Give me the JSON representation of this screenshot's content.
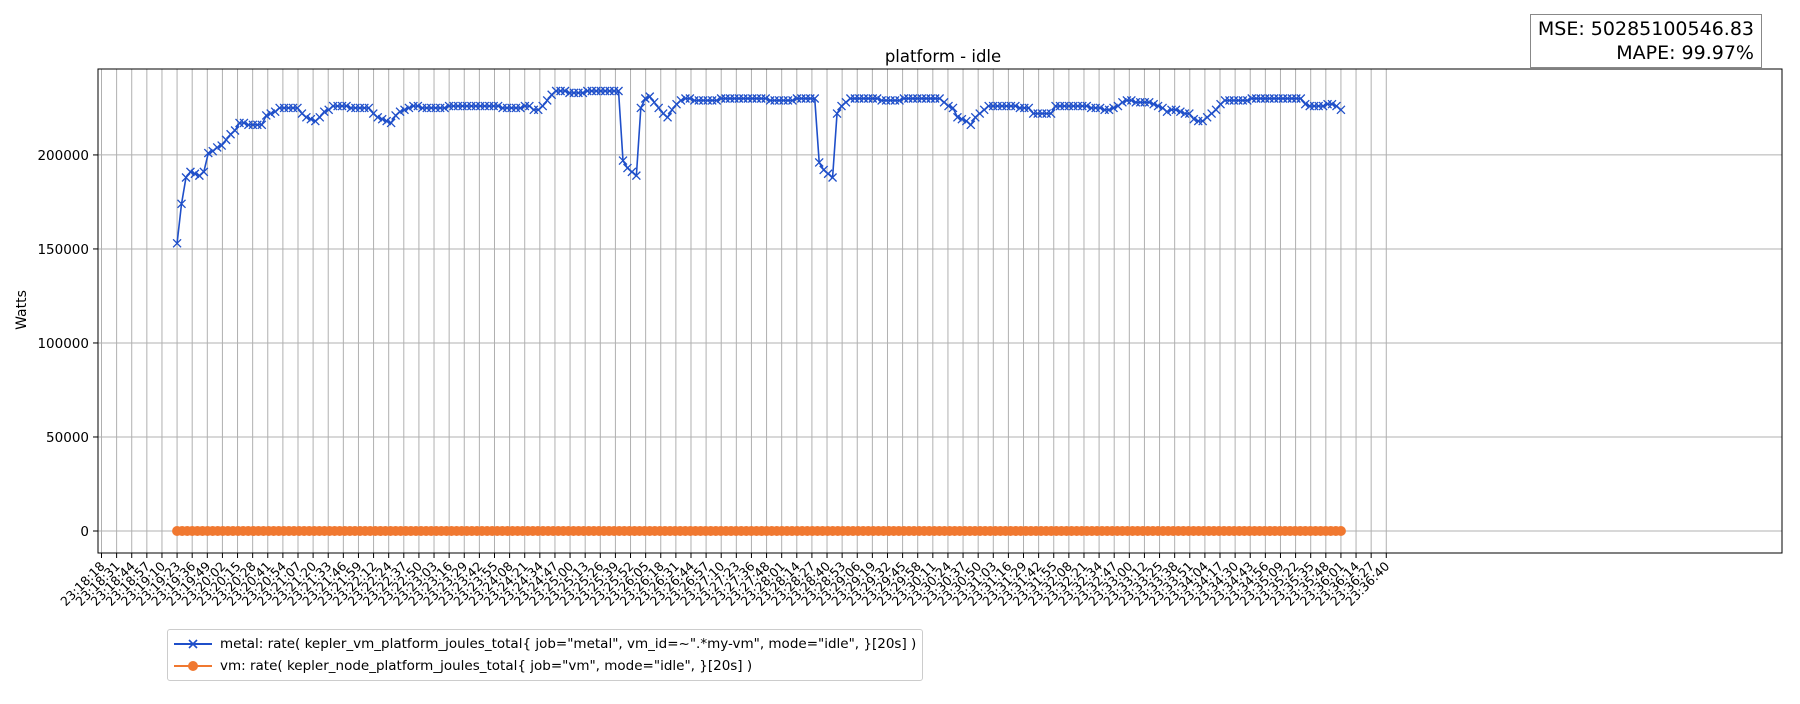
{
  "metrics": {
    "mse": "MSE: 50285100546.83",
    "mape": "MAPE: 99.97%"
  },
  "chart_data": {
    "type": "line",
    "title": "platform - idle",
    "xlabel": "",
    "ylabel": "Watts",
    "ylim": [
      -11700,
      245700
    ],
    "yticks": [
      0,
      50000,
      100000,
      150000,
      200000
    ],
    "grid": true,
    "legend_position": "lower-left",
    "x_tick_labels": [
      "23:18:18",
      "23:18:31",
      "23:18:44",
      "23:18:57",
      "23:19:10",
      "23:19:23",
      "23:19:36",
      "23:19:49",
      "23:20:02",
      "23:20:15",
      "23:20:28",
      "23:20:41",
      "23:20:54",
      "23:21:07",
      "23:21:20",
      "23:21:33",
      "23:21:46",
      "23:21:59",
      "23:22:12",
      "23:22:24",
      "23:22:37",
      "23:22:50",
      "23:23:03",
      "23:23:16",
      "23:23:29",
      "23:23:42",
      "23:23:55",
      "23:24:08",
      "23:24:21",
      "23:24:34",
      "23:24:47",
      "23:25:00",
      "23:25:13",
      "23:25:26",
      "23:25:39",
      "23:25:52",
      "23:26:05",
      "23:26:18",
      "23:26:31",
      "23:26:44",
      "23:26:57",
      "23:27:10",
      "23:27:23",
      "23:27:36",
      "23:27:48",
      "23:28:01",
      "23:28:14",
      "23:28:27",
      "23:28:40",
      "23:28:53",
      "23:29:06",
      "23:29:19",
      "23:29:32",
      "23:29:45",
      "23:29:58",
      "23:30:11",
      "23:30:24",
      "23:30:37",
      "23:30:50",
      "23:31:03",
      "23:31:16",
      "23:31:29",
      "23:31:42",
      "23:31:55",
      "23:32:08",
      "23:32:21",
      "23:32:34",
      "23:32:47",
      "23:33:00",
      "23:33:12",
      "23:33:25",
      "23:33:38",
      "23:33:51",
      "23:34:04",
      "23:34:17",
      "23:34:30",
      "23:34:43",
      "23:34:56",
      "23:35:09",
      "23:35:22",
      "23:35:35",
      "23:35:48",
      "23:36:01",
      "23:36:14",
      "23:36:27",
      "23:36:40"
    ],
    "series": [
      {
        "name": "metal: rate( kepler_vm_platform_joules_total{ job=\"metal\", vm_id=~\".*my-vm\", mode=\"idle\", }[20s] )",
        "color": "#1f4fc9",
        "marker": "x",
        "x_start": "23:19:23",
        "x_end": "23:36:01",
        "values": [
          153000,
          174000,
          188000,
          191000,
          190000,
          189000,
          191000,
          201000,
          202000,
          204000,
          205000,
          208000,
          211000,
          213000,
          217000,
          217000,
          216000,
          216000,
          216000,
          216000,
          221000,
          222000,
          223000,
          225000,
          225000,
          225000,
          225000,
          225000,
          222000,
          220000,
          219000,
          218000,
          220000,
          223000,
          224000,
          226000,
          226000,
          226000,
          226000,
          225000,
          225000,
          225000,
          225000,
          225000,
          222000,
          220000,
          219000,
          218000,
          217000,
          221000,
          223000,
          224000,
          225000,
          226000,
          226000,
          225000,
          225000,
          225000,
          225000,
          225000,
          225000,
          226000,
          226000,
          226000,
          226000,
          226000,
          226000,
          226000,
          226000,
          226000,
          226000,
          226000,
          226000,
          225000,
          225000,
          225000,
          225000,
          225000,
          226000,
          226000,
          224000,
          224000,
          226000,
          229000,
          232000,
          234000,
          234000,
          234000,
          233000,
          233000,
          233000,
          233000,
          234000,
          234000,
          234000,
          234000,
          234000,
          234000,
          234000,
          234000,
          197000,
          193000,
          191000,
          189000,
          225000,
          230000,
          231000,
          228000,
          225000,
          222000,
          220000,
          224000,
          227000,
          229000,
          230000,
          230000,
          229000,
          229000,
          229000,
          229000,
          229000,
          229000,
          230000,
          230000,
          230000,
          230000,
          230000,
          230000,
          230000,
          230000,
          230000,
          230000,
          230000,
          229000,
          229000,
          229000,
          229000,
          229000,
          229000,
          230000,
          230000,
          230000,
          230000,
          230000,
          196000,
          192000,
          190000,
          188000,
          222000,
          226000,
          228000,
          230000,
          230000,
          230000,
          230000,
          230000,
          230000,
          230000,
          229000,
          229000,
          229000,
          229000,
          229000,
          230000,
          230000,
          230000,
          230000,
          230000,
          230000,
          230000,
          230000,
          230000,
          228000,
          226000,
          225000,
          220000,
          219000,
          218000,
          216000,
          220000,
          222000,
          224000,
          226000,
          226000,
          226000,
          226000,
          226000,
          226000,
          226000,
          225000,
          225000,
          225000,
          222000,
          222000,
          222000,
          222000,
          222000,
          226000,
          226000,
          226000,
          226000,
          226000,
          226000,
          226000,
          226000,
          225000,
          225000,
          225000,
          224000,
          224000,
          225000,
          226000,
          228000,
          229000,
          229000,
          228000,
          228000,
          228000,
          228000,
          227000,
          226000,
          225000,
          223000,
          224000,
          224000,
          223000,
          222000,
          222000,
          219000,
          218000,
          218000,
          220000,
          222000,
          224000,
          227000,
          229000,
          229000,
          229000,
          229000,
          229000,
          229000,
          230000,
          230000,
          230000,
          230000,
          230000,
          230000,
          230000,
          230000,
          230000,
          230000,
          230000,
          230000,
          227000,
          226000,
          226000,
          226000,
          226000,
          227000,
          227000,
          226000,
          224000
        ]
      },
      {
        "name": "vm: rate( kepler_node_platform_joules_total{ job=\"vm\", mode=\"idle\", }[20s] )",
        "color": "#f07830",
        "marker": "o",
        "x_start": "23:19:23",
        "x_end": "23:36:01",
        "values": "zero-line",
        "constant_value": 0,
        "num_points": 230
      }
    ]
  }
}
